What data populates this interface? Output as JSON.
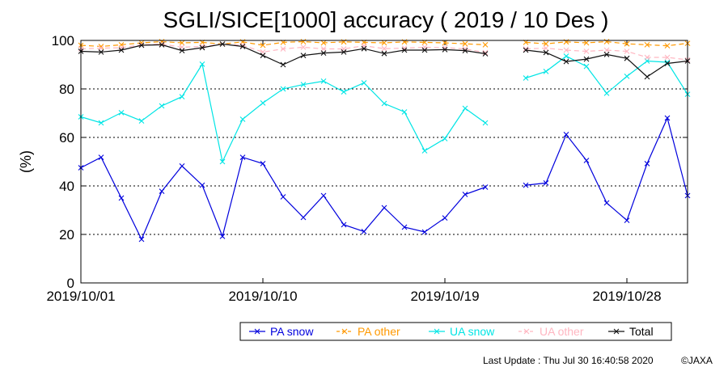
{
  "chart_data": {
    "type": "line",
    "title": "SGLI/SICE[1000] accuracy ( 2019 / 10 Des )",
    "ylabel": "(%)",
    "xlabel": "",
    "ylim": [
      0,
      100
    ],
    "yticks": [
      "0",
      "20",
      "40",
      "60",
      "80",
      "100"
    ],
    "xticks": [
      {
        "day": 1,
        "label": "2019/10/01"
      },
      {
        "day": 10,
        "label": "2019/10/10"
      },
      {
        "day": 19,
        "label": "2019/10/19"
      },
      {
        "day": 28,
        "label": "2019/10/28"
      }
    ],
    "grid": "horizontal dotted",
    "legend_position": "bottom",
    "x": [
      1,
      2,
      3,
      4,
      5,
      6,
      7,
      8,
      9,
      10,
      11,
      12,
      13,
      14,
      15,
      16,
      17,
      18,
      19,
      20,
      21,
      22,
      23,
      24,
      25,
      26,
      27,
      28,
      29,
      30,
      31
    ],
    "series": [
      {
        "name": "PA snow",
        "color": "#0000dd",
        "values": [
          47.5,
          51.8,
          35.0,
          18.0,
          37.8,
          48.2,
          40.3,
          19.2,
          51.8,
          49.2,
          35.5,
          27.0,
          36.0,
          24.0,
          21.2,
          31.0,
          23.0,
          21.0,
          26.8,
          36.5,
          39.5,
          null,
          40.3,
          41.2,
          61.2,
          50.5,
          33.0,
          25.8,
          49.2,
          68.0,
          36.0
        ]
      },
      {
        "name": "PA other",
        "color": "#ff9900",
        "values": [
          98.0,
          97.5,
          98.2,
          99.0,
          99.5,
          99.0,
          99.2,
          98.5,
          99.4,
          98.0,
          99.2,
          99.5,
          99.0,
          99.4,
          99.2,
          99.0,
          99.4,
          99.2,
          99.0,
          98.6,
          98.2,
          null,
          99.2,
          98.6,
          99.4,
          99.0,
          99.5,
          98.6,
          98.2,
          97.8,
          98.8
        ]
      },
      {
        "name": "UA snow",
        "color": "#00e5e5",
        "values": [
          68.5,
          66.0,
          70.2,
          66.8,
          73.0,
          76.8,
          90.2,
          50.0,
          67.5,
          74.2,
          80.0,
          81.8,
          83.2,
          78.8,
          82.5,
          74.0,
          70.5,
          54.5,
          59.5,
          72.0,
          66.0,
          null,
          84.5,
          87.2,
          93.5,
          89.3,
          78.2,
          85.2,
          91.5,
          91.0,
          77.8
        ]
      },
      {
        "name": "UA other",
        "color": "#ffb6c1",
        "values": [
          96.5,
          96.8,
          97.0,
          98.2,
          98.5,
          97.2,
          97.5,
          98.5,
          98.0,
          95.2,
          96.5,
          97.2,
          96.5,
          96.5,
          97.8,
          96.6,
          96.8,
          97.2,
          97.0,
          96.5,
          95.0,
          null,
          96.5,
          96.8,
          96.0,
          95.5,
          96.0,
          95.5,
          93.0,
          93.0,
          92.0
        ]
      },
      {
        "name": "Total",
        "color": "#111111",
        "values": [
          95.5,
          95.2,
          96.0,
          98.0,
          98.2,
          95.8,
          97.0,
          98.5,
          97.5,
          93.8,
          90.0,
          93.8,
          94.8,
          95.2,
          96.6,
          94.6,
          96.0,
          96.0,
          96.2,
          95.8,
          94.5,
          null,
          96.0,
          95.0,
          91.3,
          92.3,
          94.2,
          92.6,
          85.0,
          90.5,
          91.5
        ]
      }
    ]
  },
  "footer": {
    "last_update": "Last Update : Thu Jul 30 16:40:58 2020",
    "copyright": "©JAXA"
  }
}
